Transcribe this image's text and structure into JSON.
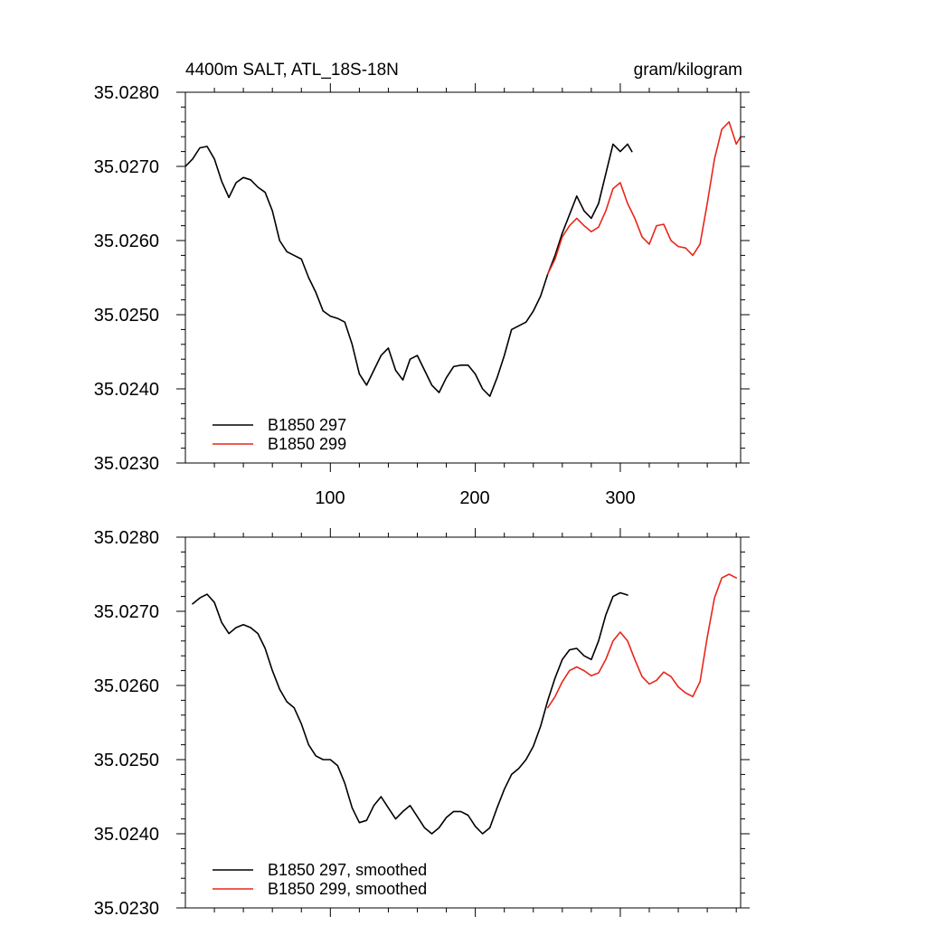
{
  "chart_data": [
    {
      "type": "line",
      "title": "4400m SALT, ATL_18S-18N",
      "units": "gram/kilogram",
      "xlabel": "",
      "ylabel": "",
      "xlim": [
        0,
        383
      ],
      "ylim": [
        35.023,
        35.028
      ],
      "xticks": [
        100,
        200,
        300
      ],
      "xtick_labels": [
        "100",
        "200",
        "300"
      ],
      "yticks": [
        35.023,
        35.024,
        35.025,
        35.026,
        35.027,
        35.028
      ],
      "ytick_labels": [
        "35.0230",
        "35.0240",
        "35.0250",
        "35.0260",
        "35.0270",
        "35.0280"
      ],
      "legend_position": "bottom-left",
      "series": [
        {
          "name": "B1850 297",
          "color": "#000000",
          "x": [
            0,
            5,
            10,
            15,
            20,
            25,
            30,
            35,
            40,
            45,
            50,
            55,
            60,
            65,
            70,
            75,
            80,
            85,
            90,
            95,
            100,
            105,
            110,
            115,
            120,
            125,
            130,
            135,
            140,
            145,
            150,
            155,
            160,
            165,
            170,
            175,
            180,
            185,
            190,
            195,
            200,
            205,
            210,
            215,
            220,
            225,
            230,
            235,
            240,
            245,
            250,
            255,
            260,
            265,
            270,
            275,
            280,
            285,
            290,
            295,
            300,
            305,
            308
          ],
          "y": [
            35.027,
            35.0271,
            35.02725,
            35.02727,
            35.0271,
            35.0268,
            35.02658,
            35.02678,
            35.02685,
            35.02682,
            35.02672,
            35.02665,
            35.0264,
            35.026,
            35.02585,
            35.0258,
            35.02575,
            35.0255,
            35.0253,
            35.02505,
            35.02498,
            35.02495,
            35.0249,
            35.0246,
            35.0242,
            35.02405,
            35.02425,
            35.02445,
            35.02455,
            35.02425,
            35.02412,
            35.0244,
            35.02445,
            35.02425,
            35.02405,
            35.02395,
            35.02415,
            35.0243,
            35.02432,
            35.02432,
            35.0242,
            35.024,
            35.0239,
            35.02415,
            35.02445,
            35.0248,
            35.02485,
            35.0249,
            35.02505,
            35.02525,
            35.02555,
            35.0258,
            35.0261,
            35.02635,
            35.0266,
            35.0264,
            35.0263,
            35.0265,
            35.0269,
            35.0273,
            35.0272,
            35.0273,
            35.0272
          ]
        },
        {
          "name": "B1850 299",
          "color": "#e8261c",
          "x": [
            250,
            255,
            260,
            265,
            270,
            275,
            280,
            285,
            290,
            295,
            300,
            305,
            310,
            315,
            320,
            325,
            330,
            335,
            340,
            345,
            350,
            355,
            360,
            365,
            370,
            375,
            380,
            383
          ],
          "y": [
            35.02555,
            35.02575,
            35.02605,
            35.0262,
            35.0263,
            35.0262,
            35.02612,
            35.02618,
            35.0264,
            35.0267,
            35.02678,
            35.0265,
            35.0263,
            35.02605,
            35.02595,
            35.0262,
            35.02622,
            35.026,
            35.02592,
            35.0259,
            35.0258,
            35.02595,
            35.0265,
            35.0271,
            35.0275,
            35.0276,
            35.0273,
            35.0274
          ]
        }
      ]
    },
    {
      "type": "line",
      "title": "",
      "xlabel": "",
      "ylabel": "",
      "xlim": [
        0,
        383
      ],
      "ylim": [
        35.023,
        35.028
      ],
      "xticks": [
        100,
        200,
        300
      ],
      "yticks": [
        35.023,
        35.024,
        35.025,
        35.026,
        35.027,
        35.028
      ],
      "ytick_labels": [
        "35.0230",
        "35.0240",
        "35.0250",
        "35.0260",
        "35.0270",
        "35.0280"
      ],
      "legend_position": "bottom-left",
      "series": [
        {
          "name": "B1850 297, smoothed",
          "color": "#000000",
          "x": [
            5,
            10,
            15,
            20,
            25,
            30,
            35,
            40,
            45,
            50,
            55,
            60,
            65,
            70,
            75,
            80,
            85,
            90,
            95,
            100,
            105,
            110,
            115,
            120,
            125,
            130,
            135,
            140,
            145,
            150,
            155,
            160,
            165,
            170,
            175,
            180,
            185,
            190,
            195,
            200,
            205,
            210,
            215,
            220,
            225,
            230,
            235,
            240,
            245,
            250,
            255,
            260,
            265,
            270,
            275,
            280,
            285,
            290,
            295,
            300,
            305
          ],
          "y": [
            35.0271,
            35.02718,
            35.02723,
            35.02712,
            35.02685,
            35.0267,
            35.02678,
            35.02682,
            35.02678,
            35.0267,
            35.0265,
            35.0262,
            35.02595,
            35.02578,
            35.0257,
            35.02548,
            35.0252,
            35.02505,
            35.025,
            35.025,
            35.02492,
            35.02468,
            35.02435,
            35.02415,
            35.02418,
            35.02438,
            35.0245,
            35.02435,
            35.0242,
            35.0243,
            35.02438,
            35.02423,
            35.02408,
            35.024,
            35.02408,
            35.02422,
            35.0243,
            35.0243,
            35.02425,
            35.0241,
            35.024,
            35.02408,
            35.02435,
            35.0246,
            35.0248,
            35.02488,
            35.025,
            35.02518,
            35.02545,
            35.0258,
            35.0261,
            35.02635,
            35.02648,
            35.0265,
            35.0264,
            35.02635,
            35.0266,
            35.02695,
            35.0272,
            35.02725,
            35.02722
          ]
        },
        {
          "name": "B1850 299, smoothed",
          "color": "#e8261c",
          "x": [
            250,
            255,
            260,
            265,
            270,
            275,
            280,
            285,
            290,
            295,
            300,
            305,
            310,
            315,
            320,
            325,
            330,
            335,
            340,
            345,
            350,
            355,
            360,
            365,
            370,
            375,
            380
          ],
          "y": [
            35.0257,
            35.02585,
            35.02605,
            35.0262,
            35.02625,
            35.0262,
            35.02613,
            35.02617,
            35.02635,
            35.0266,
            35.02672,
            35.0266,
            35.02635,
            35.02612,
            35.02602,
            35.02607,
            35.02618,
            35.02612,
            35.02598,
            35.0259,
            35.02585,
            35.02605,
            35.02665,
            35.02718,
            35.02745,
            35.0275,
            35.02745
          ]
        }
      ]
    }
  ]
}
